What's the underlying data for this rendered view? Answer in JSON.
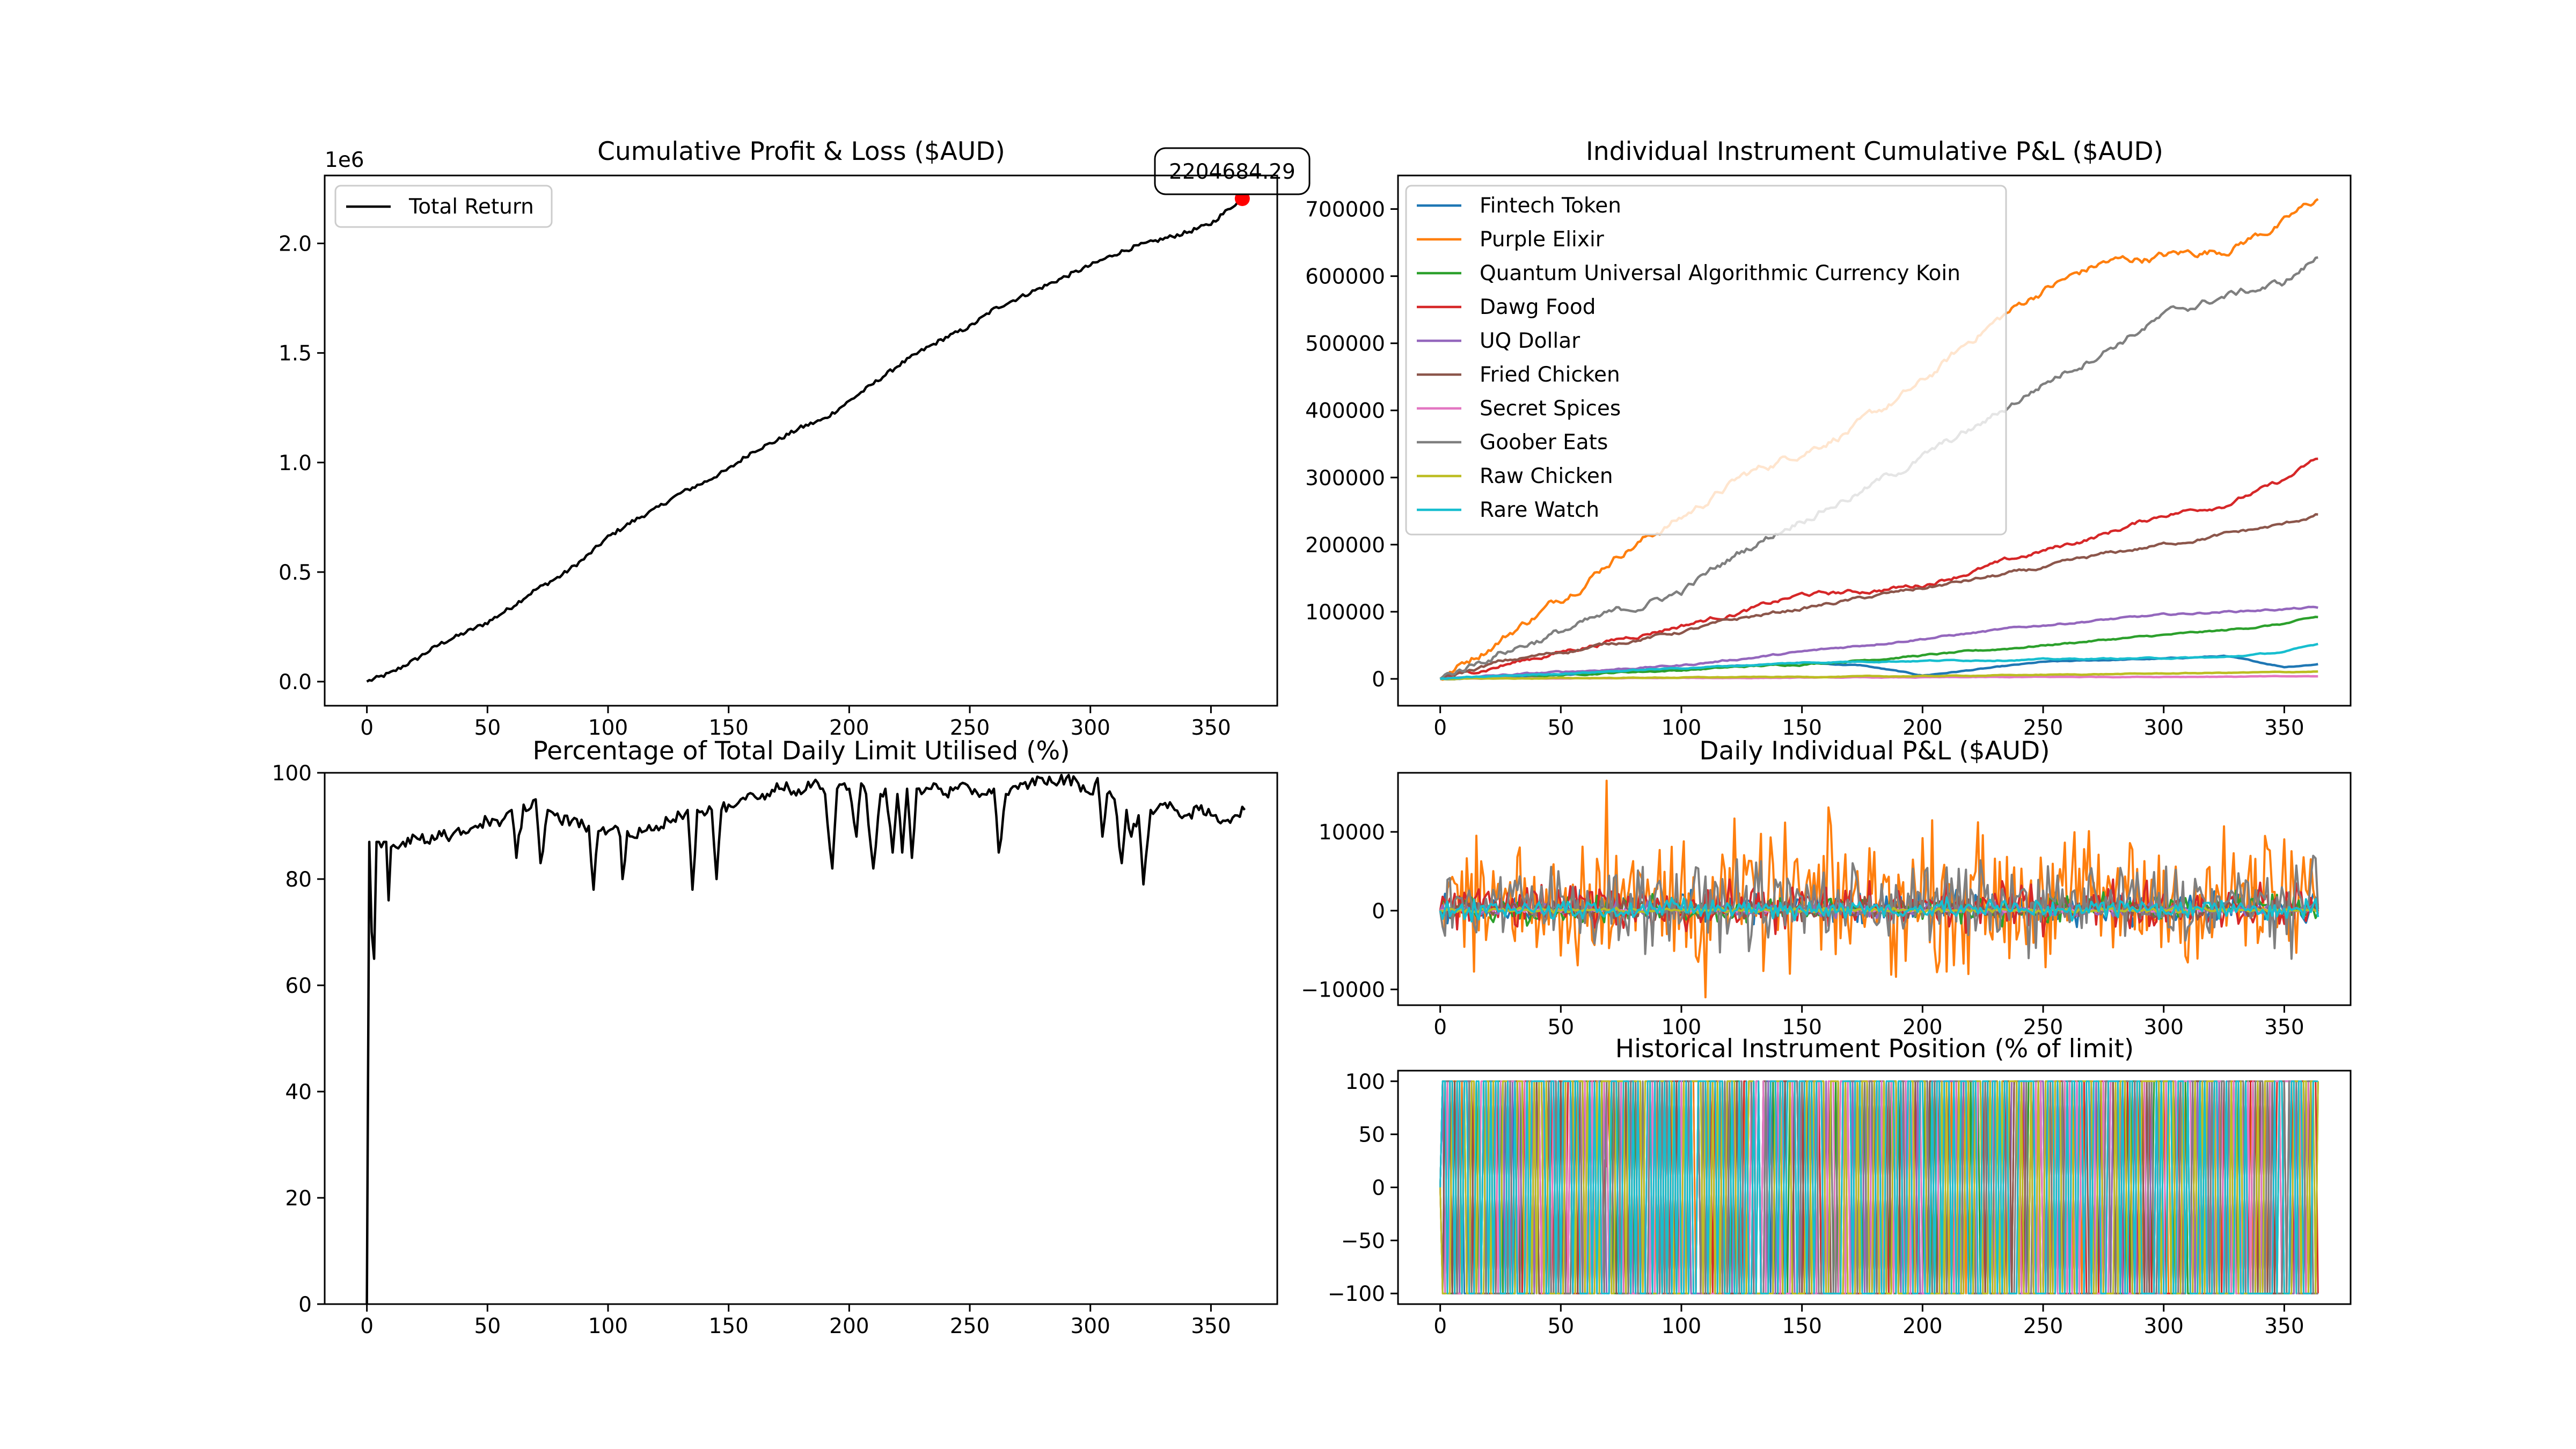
{
  "chart_data": [
    {
      "type": "line",
      "title": "Cumulative Profit & Loss ($AUD)",
      "xlabel": "",
      "ylabel": "",
      "offset_text": "1e6",
      "xlim": [
        -17.5,
        377.5
      ],
      "ylim": [
        -0.11,
        2.31
      ],
      "xticks": [
        0,
        50,
        100,
        150,
        200,
        250,
        300,
        350
      ],
      "yticks": [
        0.0,
        0.5,
        1.0,
        1.5,
        2.0
      ],
      "ytick_labels": [
        "0.0",
        "0.5",
        "1.0",
        "1.5",
        "2.0"
      ],
      "grid": false,
      "legend": "upper left",
      "series": [
        {
          "name": "Total Return",
          "color": "#000000",
          "x": [
            0,
            10,
            20,
            30,
            40,
            50,
            60,
            70,
            80,
            90,
            100,
            110,
            120,
            130,
            140,
            150,
            160,
            170,
            180,
            190,
            200,
            210,
            220,
            230,
            240,
            250,
            260,
            270,
            280,
            290,
            300,
            310,
            320,
            330,
            340,
            350,
            360,
            364
          ],
          "values": [
            0.0,
            0.04,
            0.1,
            0.17,
            0.22,
            0.27,
            0.34,
            0.42,
            0.48,
            0.56,
            0.66,
            0.73,
            0.79,
            0.86,
            0.91,
            0.97,
            1.05,
            1.1,
            1.16,
            1.2,
            1.28,
            1.36,
            1.44,
            1.51,
            1.57,
            1.62,
            1.7,
            1.75,
            1.8,
            1.85,
            1.9,
            1.95,
            1.99,
            2.02,
            2.05,
            2.09,
            2.18,
            2.2
          ]
        }
      ],
      "annotation": {
        "text": "2204684.29",
        "x": 363,
        "y": 2.204684,
        "marker_color": "#ff0000"
      }
    },
    {
      "type": "line",
      "title": "Individual Instrument Cumulative P&L ($AUD)",
      "xlabel": "",
      "ylabel": "",
      "xlim": [
        -17.5,
        377.5
      ],
      "ylim": [
        -40000,
        750000
      ],
      "xticks": [
        0,
        50,
        100,
        150,
        200,
        250,
        300,
        350
      ],
      "yticks": [
        0,
        100000,
        200000,
        300000,
        400000,
        500000,
        600000,
        700000
      ],
      "grid": false,
      "legend": "upper left",
      "x": [
        0,
        25,
        50,
        75,
        100,
        125,
        150,
        175,
        200,
        225,
        250,
        275,
        300,
        325,
        350,
        364
      ],
      "series": [
        {
          "name": "Fintech Token",
          "color": "#1f77b4",
          "values": [
            0,
            3000,
            6000,
            10000,
            14000,
            20000,
            24000,
            20000,
            5000,
            15000,
            25000,
            28000,
            30000,
            34000,
            18000,
            22000
          ]
        },
        {
          "name": "Purple Elixir",
          "color": "#ff7f0e",
          "values": [
            0,
            60000,
            120000,
            190000,
            240000,
            300000,
            340000,
            380000,
            440000,
            520000,
            580000,
            620000,
            630000,
            640000,
            680000,
            715000
          ]
        },
        {
          "name": "Quantum Universal Algorithmic Currency Koin",
          "color": "#2ca02c",
          "values": [
            0,
            3000,
            6000,
            10000,
            13000,
            18000,
            22000,
            28000,
            35000,
            42000,
            50000,
            58000,
            65000,
            72000,
            82000,
            92000
          ]
        },
        {
          "name": "Dawg Food",
          "color": "#d62728",
          "values": [
            0,
            20000,
            40000,
            60000,
            80000,
            100000,
            125000,
            130000,
            140000,
            165000,
            190000,
            215000,
            245000,
            260000,
            295000,
            328000
          ]
        },
        {
          "name": "UQ Dollar",
          "color": "#9467bd",
          "values": [
            0,
            5000,
            10000,
            15000,
            20000,
            30000,
            40000,
            50000,
            60000,
            70000,
            80000,
            88000,
            95000,
            100000,
            104000,
            106000
          ]
        },
        {
          "name": "Fried Chicken",
          "color": "#8c564b",
          "values": [
            0,
            25000,
            40000,
            55000,
            70000,
            90000,
            105000,
            120000,
            135000,
            150000,
            165000,
            185000,
            200000,
            215000,
            230000,
            245000
          ]
        },
        {
          "name": "Secret Spices",
          "color": "#e377c2",
          "values": [
            0,
            500,
            800,
            1000,
            1200,
            1500,
            1800,
            2000,
            2200,
            2500,
            2800,
            3000,
            3200,
            3400,
            3600,
            3800
          ]
        },
        {
          "name": "Goober Eats",
          "color": "#7f7f7f",
          "values": [
            0,
            40000,
            70000,
            100000,
            130000,
            190000,
            240000,
            280000,
            330000,
            380000,
            440000,
            490000,
            540000,
            570000,
            590000,
            628000
          ]
        },
        {
          "name": "Raw Chicken",
          "color": "#bcbd22",
          "values": [
            0,
            500,
            1000,
            1500,
            2000,
            2500,
            3000,
            3500,
            4000,
            5000,
            6000,
            7000,
            8000,
            9000,
            10000,
            11000
          ]
        },
        {
          "name": "Rare Watch",
          "color": "#17becf",
          "values": [
            0,
            4000,
            8000,
            12000,
            16000,
            20000,
            24000,
            26000,
            27000,
            28000,
            29000,
            30000,
            31000,
            32000,
            40000,
            52000
          ]
        }
      ]
    },
    {
      "type": "line",
      "title": "Percentage of Total Daily Limit Utilised (%)",
      "xlabel": "",
      "ylabel": "",
      "xlim": [
        -17.5,
        377.5
      ],
      "ylim": [
        0,
        100
      ],
      "xticks": [
        0,
        50,
        100,
        150,
        200,
        250,
        300,
        350
      ],
      "yticks": [
        0,
        20,
        40,
        60,
        80,
        100
      ],
      "grid": false,
      "series": [
        {
          "name": "",
          "color": "#000000",
          "x": [
            0,
            1,
            2,
            3,
            4,
            5,
            6,
            7,
            8,
            9,
            10,
            12,
            15,
            20,
            25,
            30,
            35,
            40,
            45,
            50,
            55,
            60,
            62,
            65,
            67,
            70,
            72,
            75,
            78,
            80,
            85,
            90,
            92,
            94,
            96,
            100,
            103,
            105,
            106,
            108,
            110,
            115,
            120,
            125,
            130,
            133,
            135,
            137,
            140,
            143,
            145,
            147,
            150,
            155,
            160,
            165,
            170,
            175,
            180,
            185,
            188,
            190,
            193,
            195,
            198,
            200,
            203,
            205,
            207,
            210,
            213,
            215,
            218,
            220,
            222,
            224,
            226,
            228,
            230,
            233,
            235,
            238,
            240,
            245,
            250,
            255,
            260,
            262,
            265,
            270,
            275,
            280,
            285,
            290,
            295,
            300,
            303,
            305,
            307,
            310,
            313,
            315,
            317,
            320,
            322,
            325,
            330,
            335,
            340,
            345,
            350,
            355,
            360,
            364
          ],
          "values": [
            0,
            87,
            70,
            65,
            87,
            87,
            86,
            87,
            87,
            76,
            86,
            86,
            87,
            88,
            87,
            89,
            88,
            89,
            90,
            91,
            90,
            93,
            84,
            94,
            93,
            95,
            83,
            93,
            92,
            91,
            91,
            90,
            90,
            78,
            89,
            89,
            90,
            88,
            80,
            89,
            88,
            89,
            90,
            91,
            92,
            93,
            78,
            93,
            92,
            93,
            80,
            93,
            94,
            95,
            96,
            95,
            98,
            97,
            96,
            98,
            97,
            96,
            82,
            97,
            98,
            97,
            88,
            98,
            96,
            82,
            96,
            97,
            85,
            96,
            85,
            97,
            84,
            97,
            96,
            97,
            98,
            97,
            96,
            97,
            97,
            96,
            97,
            85,
            96,
            97,
            98,
            99,
            98,
            99,
            98,
            96,
            99,
            88,
            96,
            95,
            83,
            93,
            88,
            92,
            79,
            93,
            94,
            93,
            92,
            93,
            92,
            91,
            92,
            93
          ]
        }
      ]
    },
    {
      "type": "line",
      "title": "Daily Individual P&L ($AUD)",
      "xlabel": "",
      "ylabel": "",
      "xlim": [
        -17.5,
        377.5
      ],
      "ylim": [
        -12000,
        17500
      ],
      "xticks": [
        0,
        50,
        100,
        150,
        200,
        250,
        300,
        350
      ],
      "yticks": [
        -10000,
        0,
        10000
      ],
      "grid": false,
      "series_names": [
        "Fintech Token",
        "Purple Elixir",
        "Quantum Universal Algorithmic Currency Koin",
        "Dawg Food",
        "UQ Dollar",
        "Fried Chicken",
        "Secret Spices",
        "Goober Eats",
        "Raw Chicken",
        "Rare Watch"
      ],
      "daily_amplitude": {
        "Fintech Token": 1500,
        "Purple Elixir": 6000,
        "Quantum Universal Algorithmic Currency Koin": 1200,
        "Dawg Food": 2000,
        "UQ Dollar": 600,
        "Fried Chicken": 900,
        "Secret Spices": 150,
        "Goober Eats": 3500,
        "Raw Chicken": 200,
        "Rare Watch": 900
      },
      "extremes": {
        "max": 16500,
        "max_x": 69,
        "min": -11000,
        "min_x": 110
      }
    },
    {
      "type": "line",
      "title": "Historical Instrument Position (% of limit)",
      "xlabel": "",
      "ylabel": "",
      "xlim": [
        -17.5,
        377.5
      ],
      "ylim": [
        -110,
        110
      ],
      "xticks": [
        0,
        50,
        100,
        150,
        200,
        250,
        300,
        350
      ],
      "yticks": [
        -100,
        -50,
        0,
        50,
        100
      ],
      "grid": false,
      "series_names": [
        "Fintech Token",
        "Purple Elixir",
        "Quantum Universal Algorithmic Currency Koin",
        "Dawg Food",
        "UQ Dollar",
        "Fried Chicken",
        "Secret Spices",
        "Goober Eats",
        "Raw Chicken",
        "Rare Watch"
      ],
      "position_levels": [
        -100,
        100
      ]
    }
  ]
}
